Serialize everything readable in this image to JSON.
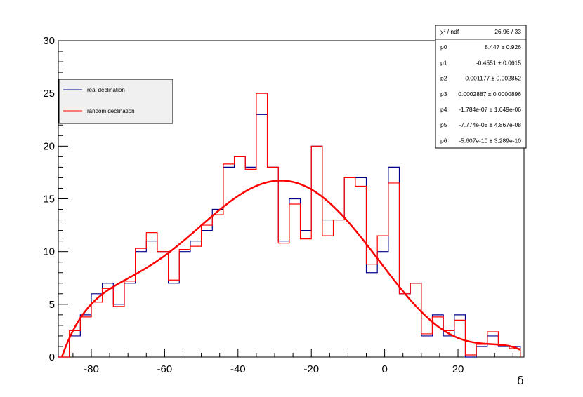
{
  "chart_data": {
    "type": "histogram",
    "xlabel": "δ",
    "ylabel": "",
    "xlim": [
      -89,
      38
    ],
    "ylim": [
      0,
      30
    ],
    "xticks": [
      -80,
      -60,
      -40,
      -20,
      0,
      20
    ],
    "yticks": [
      0,
      5,
      10,
      15,
      20,
      25,
      30
    ],
    "bin_edges": [
      -89,
      -86,
      -83,
      -80,
      -77,
      -74,
      -71,
      -68,
      -65,
      -62,
      -59,
      -56,
      -53,
      -50,
      -47,
      -44,
      -41,
      -38,
      -35,
      -32,
      -29,
      -26,
      -23,
      -20,
      -17,
      -14,
      -11,
      -8,
      -5,
      -2,
      1,
      4,
      7,
      10,
      13,
      16,
      19,
      22,
      25,
      28,
      31,
      34,
      37
    ],
    "legend": {
      "position": "top-left"
    },
    "series": [
      {
        "name": "real declination",
        "color": "#00008b",
        "values": [
          0,
          2,
          4,
          6,
          7,
          5,
          7,
          10,
          11,
          10,
          7,
          10,
          11,
          12,
          14,
          18,
          19,
          18,
          23,
          18,
          11,
          15,
          12,
          20,
          13,
          13,
          17,
          17,
          8,
          10,
          18,
          6,
          7,
          2,
          4,
          2,
          4,
          0,
          1,
          2,
          1,
          1
        ]
      },
      {
        "name": "random declination",
        "color": "#ff0000",
        "values": [
          0,
          2.5,
          3.8,
          5.2,
          6.5,
          4.8,
          7.2,
          10.3,
          11.8,
          10,
          7.3,
          10.2,
          10.5,
          12.5,
          13.5,
          18.3,
          19,
          17.8,
          25,
          18,
          10.8,
          14.5,
          11.2,
          20,
          11.5,
          13,
          17,
          16.2,
          8.8,
          11.5,
          16.5,
          6,
          7,
          2.2,
          3.8,
          2.5,
          3.5,
          0.2,
          1.2,
          2.4,
          1.1,
          0.8
        ]
      }
    ],
    "fit": {
      "name": "polynomial fit",
      "color": "#ff0000",
      "params": [
        8.447,
        -0.4551,
        0.001177,
        0.0002887,
        -1.784e-07,
        -7.774e-08,
        -5.607e-10
      ]
    },
    "stats": {
      "rows": [
        {
          "label": "χ² / ndf",
          "value": "26.96 / 33"
        },
        {
          "label": "p0",
          "value": "8.447  ± 0.926"
        },
        {
          "label": "p1",
          "value": "-0.4551  ± 0.0615"
        },
        {
          "label": "p2",
          "value": "0.001177  ± 0.002852"
        },
        {
          "label": "p3",
          "value": "0.0002887  ± 0.0000896"
        },
        {
          "label": "p4",
          "value": "-1.784e-07  ± 1.649e-06"
        },
        {
          "label": "p5",
          "value": "-7.774e-08  ± 4.867e-08"
        },
        {
          "label": "p6",
          "value": "-5.607e-10  ± 3.289e-10"
        }
      ]
    }
  }
}
